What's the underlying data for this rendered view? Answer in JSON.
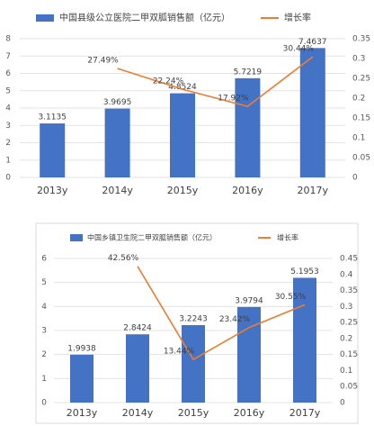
{
  "chart_data": [
    {
      "type": "bar-line",
      "categories": [
        "2013y",
        "2014y",
        "2015y",
        "2016y",
        "2017y"
      ],
      "series": [
        {
          "name": "中国县级公立医院二甲双胍销售额（亿元）",
          "color": "#4472c4",
          "type": "bar",
          "values": [
            3.1135,
            3.9695,
            4.8524,
            5.7219,
            7.4637
          ]
        },
        {
          "name": "增长率",
          "color": "#ed7d31",
          "type": "line",
          "axis": "y2",
          "values": [
            null,
            0.2749,
            0.2224,
            0.1792,
            0.3044
          ],
          "value_labels": [
            null,
            "27.49%",
            "22.24%",
            "17.92%",
            "30.44%"
          ]
        }
      ],
      "ylim": [
        0,
        8
      ],
      "yticks": [
        0,
        1,
        2,
        3,
        4,
        5,
        6,
        7,
        8
      ],
      "y2lim": [
        0,
        0.35
      ],
      "y2ticks": [
        0,
        0.05,
        0.1,
        0.15,
        0.2,
        0.25,
        0.3,
        0.35
      ],
      "grid": true
    },
    {
      "type": "bar-line",
      "categories": [
        "2013y",
        "2014y",
        "2015y",
        "2016y",
        "2017y"
      ],
      "series": [
        {
          "name": "中国乡镇卫生院二甲双胍销售额（亿元）",
          "color": "#4472c4",
          "type": "bar",
          "values": [
            1.9938,
            2.8424,
            3.2243,
            3.9794,
            5.1953
          ]
        },
        {
          "name": "增长率",
          "color": "#ed7d31",
          "type": "line",
          "axis": "y2",
          "values": [
            null,
            0.4256,
            0.1344,
            0.2342,
            0.3055
          ],
          "value_labels": [
            null,
            "42.56%",
            "13.44%",
            "23.42%",
            "30.55%"
          ]
        }
      ],
      "ylim": [
        0,
        6
      ],
      "yticks": [
        0,
        1,
        2,
        3,
        4,
        5,
        6
      ],
      "y2lim": [
        0,
        0.45
      ],
      "y2ticks": [
        0,
        0.05,
        0.1,
        0.15,
        0.2,
        0.25,
        0.3,
        0.35,
        0.4,
        0.45
      ],
      "grid": true
    }
  ]
}
